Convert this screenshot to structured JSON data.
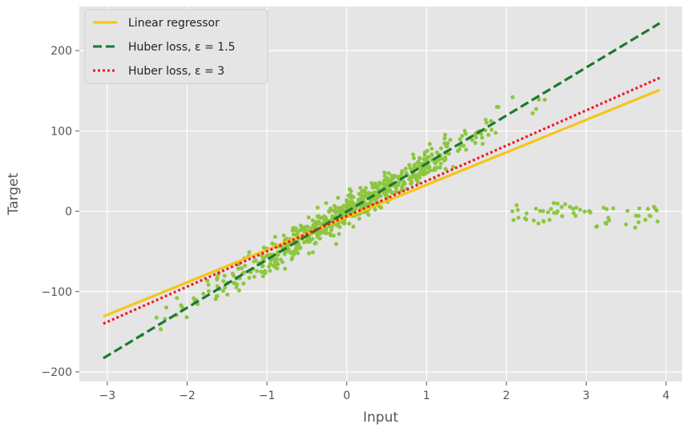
{
  "chart_data": {
    "type": "scatter",
    "xlabel": "Input",
    "ylabel": "Target",
    "xlim": [
      -3.35,
      4.2
    ],
    "ylim": [
      -212,
      255
    ],
    "xticks": [
      -3,
      -2,
      -1,
      0,
      1,
      2,
      3,
      4
    ],
    "xtick_labels": [
      "−3",
      "−2",
      "−1",
      "0",
      "1",
      "2",
      "3",
      "4"
    ],
    "yticks": [
      -200,
      -100,
      0,
      100,
      200
    ],
    "ytick_labels": [
      "−200",
      "−100",
      "0",
      "100",
      "200"
    ],
    "grid": true,
    "legend_position": "top-left",
    "colors": {
      "background": "#e5e5e5",
      "grid": "#ffffff",
      "points": "#8dc63f",
      "linear": "#f5c518",
      "huber15": "#1a7a2e",
      "huber3": "#ee1c25"
    },
    "lines": [
      {
        "name": "Linear regressor",
        "x": [
          -3.05,
          3.92
        ],
        "y": [
          -131,
          151
        ],
        "color": "#f5c518",
        "dash": "solid"
      },
      {
        "name": "Huber loss, ε = 1.5",
        "x": [
          -3.05,
          3.92
        ],
        "y": [
          -183,
          234
        ],
        "color": "#1a7a2e",
        "dash": "dashed"
      },
      {
        "name": "Huber loss, ε = 3",
        "x": [
          -3.05,
          3.92
        ],
        "y": [
          -140,
          166
        ],
        "color": "#ee1c25",
        "dash": "dotted"
      }
    ],
    "scatter": {
      "color": "#8dc63f",
      "main": {
        "x_range": [
          -3.05,
          2.5
        ],
        "slope": 60,
        "intercept": 0,
        "noise": 10,
        "n": 700
      },
      "outliers": {
        "x_range": [
          2.0,
          3.95
        ],
        "y_center": -2,
        "noise": 7,
        "n": 60
      }
    }
  }
}
